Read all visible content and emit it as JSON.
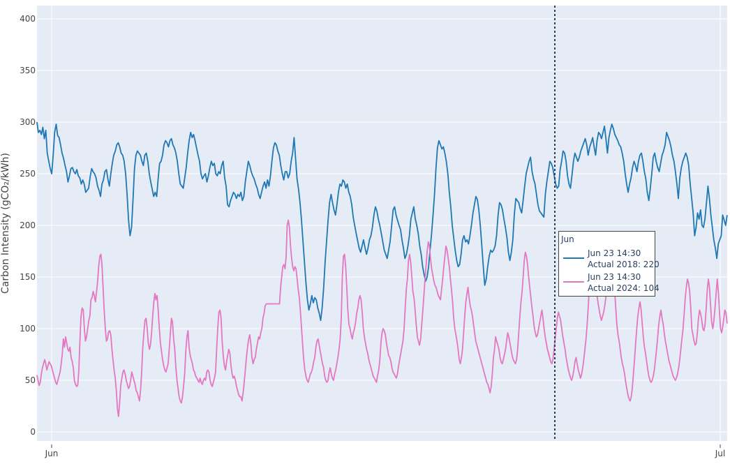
{
  "chart_data": {
    "type": "line",
    "title": "",
    "xlabel": "",
    "ylabel": "Carbon Intensity (gCO₂/kWh)",
    "ylim": [
      -8,
      413
    ],
    "yticks": [
      0,
      50,
      100,
      150,
      200,
      250,
      300,
      350,
      400
    ],
    "xticks": [
      {
        "label": "Jun",
        "day": 0
      },
      {
        "label": "Jul",
        "day": 30
      }
    ],
    "x_range_days": [
      -0.66,
      30.31
    ],
    "sample_step_hours": 3,
    "x_start_day": -0.66,
    "grid": true,
    "legend": "none",
    "series": [
      {
        "name": "Actual 2018",
        "color": "#1f77b4",
        "values": [
          300,
          290,
          292,
          288,
          295,
          284,
          292,
          270,
          262,
          255,
          250,
          268,
          290,
          298,
          287,
          285,
          278,
          270,
          265,
          258,
          252,
          242,
          248,
          255,
          256,
          252,
          250,
          254,
          248,
          246,
          240,
          244,
          240,
          232,
          234,
          236,
          247,
          255,
          252,
          250,
          246,
          238,
          234,
          228,
          240,
          244,
          252,
          254,
          245,
          238,
          250,
          260,
          268,
          272,
          278,
          280,
          276,
          270,
          268,
          262,
          250,
          230,
          205,
          190,
          198,
          225,
          255,
          268,
          272,
          270,
          268,
          262,
          258,
          268,
          270,
          262,
          250,
          242,
          235,
          228,
          232,
          228,
          245,
          260,
          262,
          268,
          278,
          282,
          280,
          276,
          282,
          284,
          278,
          275,
          270,
          262,
          250,
          240,
          238,
          236,
          246,
          256,
          270,
          282,
          290,
          285,
          288,
          282,
          275,
          268,
          262,
          250,
          245,
          248,
          250,
          242,
          248,
          256,
          262,
          258,
          260,
          250,
          248,
          252,
          250,
          258,
          262,
          246,
          238,
          220,
          218,
          224,
          228,
          232,
          230,
          226,
          230,
          228,
          232,
          224,
          228,
          242,
          252,
          262,
          258,
          252,
          248,
          245,
          240,
          236,
          230,
          226,
          232,
          238,
          242,
          236,
          244,
          238,
          248,
          262,
          275,
          280,
          278,
          272,
          268,
          258,
          250,
          244,
          252,
          252,
          246,
          250,
          262,
          270,
          285,
          265,
          245,
          235,
          222,
          205,
          185,
          165,
          145,
          128,
          118,
          124,
          132,
          125,
          130,
          128,
          120,
          115,
          108,
          120,
          140,
          165,
          185,
          205,
          222,
          230,
          222,
          215,
          210,
          220,
          232,
          240,
          238,
          244,
          242,
          236,
          240,
          232,
          228,
          220,
          208,
          200,
          192,
          185,
          178,
          174,
          180,
          186,
          178,
          172,
          178,
          186,
          190,
          198,
          210,
          218,
          214,
          206,
          200,
          192,
          184,
          176,
          172,
          168,
          176,
          185,
          200,
          215,
          218,
          210,
          205,
          200,
          196,
          186,
          178,
          168,
          172,
          180,
          190,
          206,
          212,
          218,
          206,
          200,
          192,
          180,
          172,
          160,
          152,
          146,
          150,
          160,
          176,
          192,
          210,
          230,
          255,
          275,
          282,
          278,
          274,
          276,
          270,
          262,
          250,
          232,
          218,
          200,
          188,
          176,
          166,
          160,
          162,
          172,
          186,
          190,
          184,
          186,
          182,
          190,
          200,
          212,
          220,
          228,
          225,
          215,
          200,
          180,
          160,
          142,
          148,
          160,
          170,
          176,
          174,
          176,
          180,
          190,
          210,
          222,
          220,
          215,
          206,
          198,
          188,
          174,
          166,
          174,
          186,
          210,
          226,
          224,
          222,
          216,
          212,
          225,
          238,
          250,
          256,
          262,
          266,
          252,
          245,
          240,
          230,
          220,
          214,
          212,
          210,
          208,
          230,
          242,
          252,
          262,
          260,
          256,
          248,
          240,
          236,
          238,
          254,
          262,
          272,
          270,
          262,
          248,
          240,
          236,
          248,
          262,
          270,
          266,
          262,
          266,
          272,
          276,
          280,
          284,
          278,
          268,
          276,
          280,
          285,
          276,
          268,
          282,
          290,
          288,
          284,
          290,
          296,
          284,
          270,
          285,
          292,
          298,
          294,
          288,
          285,
          282,
          278,
          276,
          270,
          262,
          250,
          240,
          232,
          240,
          246,
          256,
          262,
          258,
          252,
          262,
          268,
          270,
          262,
          252,
          245,
          232,
          224,
          236,
          250,
          266,
          270,
          262,
          256,
          252,
          260,
          268,
          272,
          278,
          290,
          286,
          282,
          276,
          268,
          262,
          252,
          240,
          226,
          246,
          256,
          262,
          266,
          270,
          266,
          258,
          240,
          226,
          212,
          190,
          198,
          212,
          206,
          215,
          200,
          198,
          206,
          222,
          238,
          226,
          210,
          198,
          186,
          178,
          168,
          182,
          186,
          190,
          210,
          205,
          200,
          210
        ]
      },
      {
        "name": "Actual 2024",
        "color": "#e377c2",
        "values": [
          55,
          50,
          45,
          48,
          56,
          62,
          66,
          70,
          66,
          60,
          64,
          68,
          66,
          64,
          60,
          56,
          52,
          48,
          46,
          50,
          54,
          58,
          66,
          76,
          90,
          82,
          92,
          86,
          80,
          78,
          82,
          72,
          68,
          62,
          50,
          46,
          44,
          45,
          60,
          88,
          112,
          120,
          118,
          100,
          88,
          92,
          100,
          108,
          112,
          128,
          130,
          136,
          132,
          126,
          135,
          145,
          160,
          170,
          172,
          162,
          140,
          118,
          100,
          88,
          90,
          97,
          98,
          94,
          80,
          70,
          60,
          52,
          40,
          22,
          15,
          28,
          45,
          52,
          58,
          60,
          56,
          50,
          46,
          42,
          44,
          50,
          58,
          54,
          50,
          46,
          40,
          38,
          34,
          30,
          40,
          58,
          82,
          96,
          108,
          110,
          100,
          86,
          80,
          84,
          96,
          112,
          126,
          134,
          128,
          132,
          118,
          100,
          86,
          78,
          70,
          64,
          60,
          58,
          62,
          66,
          80,
          96,
          110,
          106,
          90,
          80,
          62,
          50,
          42,
          34,
          30,
          28,
          34,
          44,
          56,
          78,
          92,
          98,
          82,
          74,
          70,
          66,
          60,
          58,
          54,
          52,
          50,
          48,
          52,
          48,
          46,
          50,
          52,
          50,
          58,
          60,
          58,
          50,
          46,
          44,
          48,
          52,
          58,
          80,
          100,
          116,
          118,
          110,
          88,
          74,
          64,
          60,
          68,
          74,
          80,
          76,
          64,
          56,
          52,
          54,
          50,
          44,
          40,
          36,
          34,
          34,
          30,
          38,
          48,
          60,
          72,
          82,
          90,
          94,
          86,
          72,
          66,
          70,
          72,
          80,
          86,
          92,
          90,
          96,
          100,
          110,
          115,
          122,
          124,
          124,
          124,
          124,
          124,
          124,
          124,
          124,
          124,
          124,
          124,
          124,
          124,
          140,
          150,
          160,
          162,
          158,
          170,
          200,
          205,
          198,
          180,
          168,
          160,
          156,
          160,
          158,
          148,
          138,
          130,
          116,
          100,
          84,
          70,
          60,
          54,
          50,
          48,
          52,
          56,
          58,
          62,
          68,
          72,
          82,
          88,
          90,
          84,
          78,
          72,
          66,
          62,
          54,
          50,
          48,
          50,
          58,
          62,
          56,
          52,
          50,
          56,
          60,
          66,
          72,
          80,
          90,
          110,
          150,
          170,
          172,
          160,
          140,
          118,
          104,
          100,
          94,
          90,
          96,
          100,
          106,
          115,
          120,
          128,
          132,
          128,
          116,
          100,
          92,
          86,
          80,
          76,
          70,
          66,
          62,
          58,
          54,
          52,
          50,
          48,
          55,
          60,
          70,
          86,
          96,
          100,
          98,
          94,
          86,
          80,
          74,
          72,
          68,
          62,
          58,
          56,
          54,
          52,
          56,
          64,
          70,
          76,
          82,
          88,
          100,
          120,
          138,
          148,
          166,
          172,
          164,
          150,
          136,
          130,
          118,
          104,
          92,
          88,
          84,
          90,
          104,
          118,
          132,
          148,
          162,
          176,
          184,
          180,
          168,
          158,
          152,
          146,
          142,
          140,
          136,
          132,
          130,
          128,
          138,
          148,
          160,
          170,
          180,
          176,
          168,
          160,
          148,
          138,
          126,
          110,
          100,
          94,
          88,
          80,
          70,
          66,
          72,
          80,
          96,
          112,
          126,
          134,
          140,
          130,
          122,
          118,
          112,
          104,
          96,
          88,
          84,
          80,
          76,
          72,
          68,
          64,
          60,
          56,
          52,
          48,
          46,
          42,
          38,
          44,
          56,
          72,
          80,
          92,
          88,
          84,
          80,
          72,
          68,
          66,
          70,
          75,
          80,
          88,
          96,
          92,
          86,
          80,
          74,
          70,
          68,
          66,
          70,
          80,
          96,
          112,
          126,
          136,
          150,
          166,
          174,
          170,
          162,
          150,
          140,
          130,
          120,
          112,
          102,
          96,
          92,
          94,
          100,
          106,
          112,
          118,
          110,
          100,
          92,
          86,
          80,
          76,
          72,
          68,
          66,
          70,
          80,
          90,
          100,
          110,
          116,
          112,
          108,
          100,
          92,
          86,
          80,
          72,
          66,
          60,
          56,
          52,
          50,
          54,
          60,
          68,
          72,
          66,
          60,
          56,
          52,
          56,
          62,
          70,
          80,
          90,
          104,
          120,
          140,
          152,
          160,
          164,
          158,
          150,
          140,
          132,
          124,
          118,
          112,
          108,
          112,
          116,
          122,
          130,
          140,
          156,
          168,
          175,
          172,
          164,
          150,
          136,
          120,
          104,
          94,
          88,
          80,
          72,
          66,
          62,
          56,
          48,
          42,
          36,
          32,
          30,
          34,
          42,
          56,
          70,
          86,
          100,
          112,
          120,
          126,
          118,
          104,
          92,
          82,
          76,
          68,
          60,
          54,
          50,
          48,
          50,
          54,
          60,
          70,
          80,
          92,
          104,
          112,
          118,
          110,
          104,
          96,
          88,
          82,
          76,
          70,
          66,
          62,
          58,
          54,
          52,
          50,
          52,
          56,
          62,
          70,
          80,
          90,
          100,
          114,
          130,
          140,
          148,
          144,
          136,
          120,
          100,
          94,
          88,
          84,
          86,
          96,
          110,
          118,
          114,
          108,
          100,
          98,
          104,
          120,
          138,
          148,
          140,
          122,
          106,
          100,
          108,
          120,
          134,
          148,
          136,
          118,
          100,
          96,
          102,
          110,
          118,
          115,
          105
        ]
      }
    ]
  },
  "axis": {
    "y_label": "Carbon Intensity (gCO₂/kWh)",
    "y_ticks": [
      "0",
      "50",
      "100",
      "150",
      "200",
      "250",
      "300",
      "350",
      "400"
    ],
    "x_ticks": [
      "Jun",
      "Jul"
    ]
  },
  "hover": {
    "title": "Jun",
    "rows": [
      {
        "time": "Jun 23 14:30",
        "label": "Actual 2018: 220",
        "color": "#1f77b4"
      },
      {
        "time": "Jun 23 14:30",
        "label": "Actual 2024: 104",
        "color": "#e377c2"
      }
    ],
    "spike_day": 22.6
  },
  "colors": {
    "plot_bg": "#e5ecf6",
    "grid": "#ffffff",
    "spike": "#2a3f5f"
  }
}
